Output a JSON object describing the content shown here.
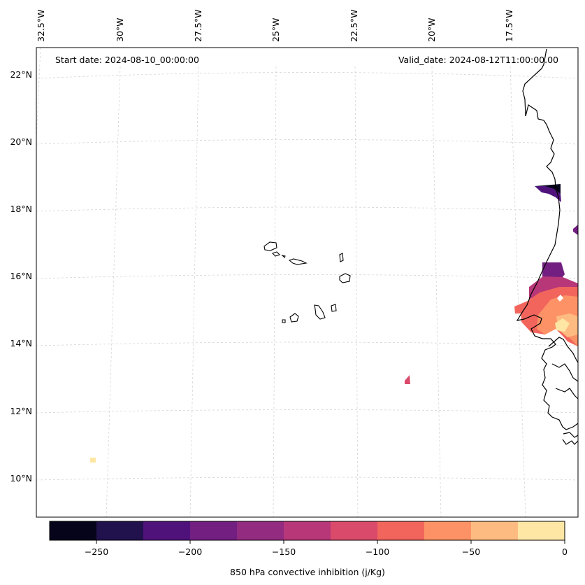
{
  "header": {
    "start_date": "Start date: 2024-08-10_00:00:00",
    "valid_date": "Valid_date: 2024-08-12T11:00:00.00"
  },
  "lon_labels": [
    "32.5°W",
    "30°W",
    "27.5°W",
    "25°W",
    "22.5°W",
    "20°W",
    "17.5°W"
  ],
  "lat_labels": [
    "22°N",
    "20°N",
    "18°N",
    "16°N",
    "14°N",
    "12°N",
    "10°N"
  ],
  "colorbar": {
    "label": "850 hPa convective inhibition (j/Kg)",
    "ticks": [
      "−250",
      "−200",
      "−150",
      "−100",
      "−50",
      "0"
    ],
    "colors": [
      "#05041a",
      "#21114d",
      "#4f127b",
      "#721f81",
      "#932b80",
      "#b73779",
      "#da4a6b",
      "#f2655c",
      "#fd9266",
      "#febb81",
      "#fee6a4"
    ]
  }
}
